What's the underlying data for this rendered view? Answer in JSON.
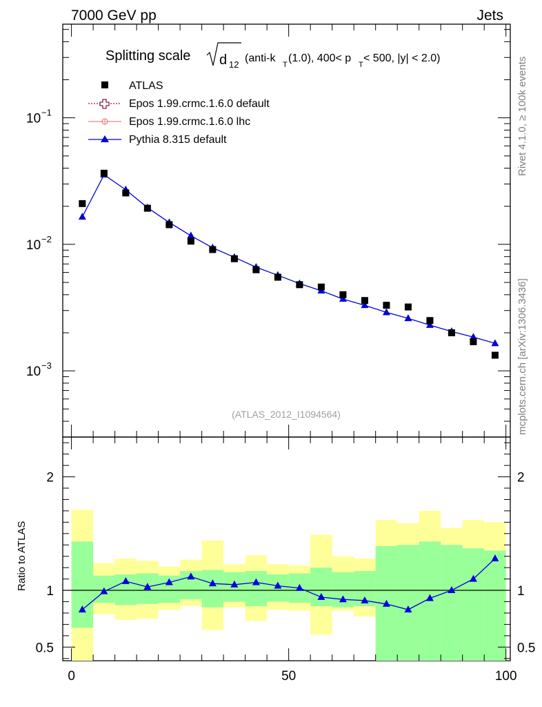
{
  "header": {
    "left": "7000 GeV pp",
    "right": "Jets"
  },
  "title": {
    "main": "Splitting scale",
    "sqrt_d": "d",
    "sqrt_sub": "12",
    "p1": "(anti-k",
    "sub_T1": "T",
    "p2": "(1.0), 400< p",
    "sub_T2": "T",
    "p3": " < 500, |y| < 2.0)"
  },
  "side_labels": {
    "rivet": "Rivet 4.1.0, ≥ 100k events",
    "mcplots": "mcplots.cern.ch [arXiv:1306.3436]"
  },
  "watermark": "(ATLAS_2012_I1094564)",
  "legend": [
    {
      "label": "ATLAS",
      "color": "#000000",
      "marker": "square"
    },
    {
      "label": "Epos 1.99.crmc.1.6.0 default",
      "color": "#8b1a3a",
      "marker": "open-cross"
    },
    {
      "label": "Epos 1.99.crmc.1.6.0 lhc",
      "color": "#f08080",
      "marker": "circle-cross"
    },
    {
      "label": "Pythia 8.315 default",
      "color": "#0000dd",
      "marker": "triangle"
    }
  ],
  "ratio_ylabel": "Ratio to ATLAS",
  "chart_data": {
    "type": "line",
    "xlabel": "",
    "ylabel": "",
    "xlim": [
      -2,
      101
    ],
    "ylim": [
      0.0003,
      0.55
    ],
    "ylog": true,
    "x_ticks": [
      0,
      50,
      100
    ],
    "y_ticks_labels": [
      "10",
      "10",
      "10"
    ],
    "y_ticks_exponents": [
      "−1",
      "−2",
      "−3"
    ],
    "y_ticks_values": [
      0.1,
      0.01,
      0.001
    ],
    "x": [
      2.5,
      7.5,
      12.5,
      17.5,
      22.5,
      27.5,
      32.5,
      37.5,
      42.5,
      47.5,
      52.5,
      57.5,
      62.5,
      67.5,
      72.5,
      77.5,
      82.5,
      87.5,
      92.5,
      97.5
    ],
    "series": [
      {
        "name": "ATLAS",
        "values": [
          0.021,
          0.0365,
          0.0255,
          0.0193,
          0.0143,
          0.0106,
          0.0091,
          0.0077,
          0.0063,
          0.0055,
          0.0048,
          0.0046,
          0.004,
          0.0036,
          0.0033,
          0.0032,
          0.0025,
          0.002,
          0.0017,
          0.00133
        ]
      },
      {
        "name": "Pythia 8.315 default",
        "values": [
          0.0165,
          0.0355,
          0.027,
          0.0195,
          0.0149,
          0.0117,
          0.0094,
          0.0079,
          0.0066,
          0.0057,
          0.0049,
          0.0043,
          0.0037,
          0.0033,
          0.0029,
          0.0026,
          0.0023,
          0.00205,
          0.00185,
          0.00165
        ]
      }
    ],
    "ratio": {
      "ylabel": "Ratio to ATLAS",
      "ylim": [
        0.38,
        2.35
      ],
      "y_ticks": [
        0.5,
        1,
        2
      ],
      "y_tick_labels": [
        "0.5",
        "1",
        "2"
      ],
      "bin_edges": [
        0,
        5,
        10,
        15,
        20,
        25,
        30,
        35,
        40,
        45,
        50,
        55,
        60,
        65,
        70,
        75,
        80,
        85,
        90,
        95,
        100
      ],
      "pythia": [
        0.83,
        0.99,
        1.08,
        1.03,
        1.07,
        1.12,
        1.06,
        1.05,
        1.07,
        1.04,
        1.02,
        0.94,
        0.92,
        0.91,
        0.88,
        0.83,
        0.93,
        1.0,
        1.1,
        1.28
      ],
      "band_inner_lo": [
        0.67,
        0.89,
        0.87,
        0.88,
        0.89,
        0.92,
        0.85,
        0.9,
        0.86,
        0.9,
        0.89,
        0.86,
        0.85,
        0.86,
        0.33,
        0.32,
        0.33,
        0.33,
        0.33,
        0.33
      ],
      "band_inner_hi": [
        1.43,
        1.13,
        1.14,
        1.15,
        1.13,
        1.17,
        1.18,
        1.16,
        1.17,
        1.14,
        1.15,
        1.2,
        1.16,
        1.17,
        1.39,
        1.4,
        1.43,
        1.4,
        1.37,
        1.35
      ],
      "band_outer_lo": [
        0.33,
        0.79,
        0.74,
        0.75,
        0.83,
        0.86,
        0.65,
        0.85,
        0.73,
        0.83,
        0.82,
        0.61,
        0.82,
        0.77,
        0.33,
        0.33,
        0.33,
        0.57,
        0.4,
        0.42
      ],
      "band_outer_hi": [
        1.71,
        1.24,
        1.28,
        1.26,
        1.21,
        1.27,
        1.44,
        1.23,
        1.31,
        1.23,
        1.22,
        1.49,
        1.3,
        1.28,
        1.62,
        1.59,
        1.7,
        1.55,
        1.62,
        1.6
      ]
    }
  }
}
